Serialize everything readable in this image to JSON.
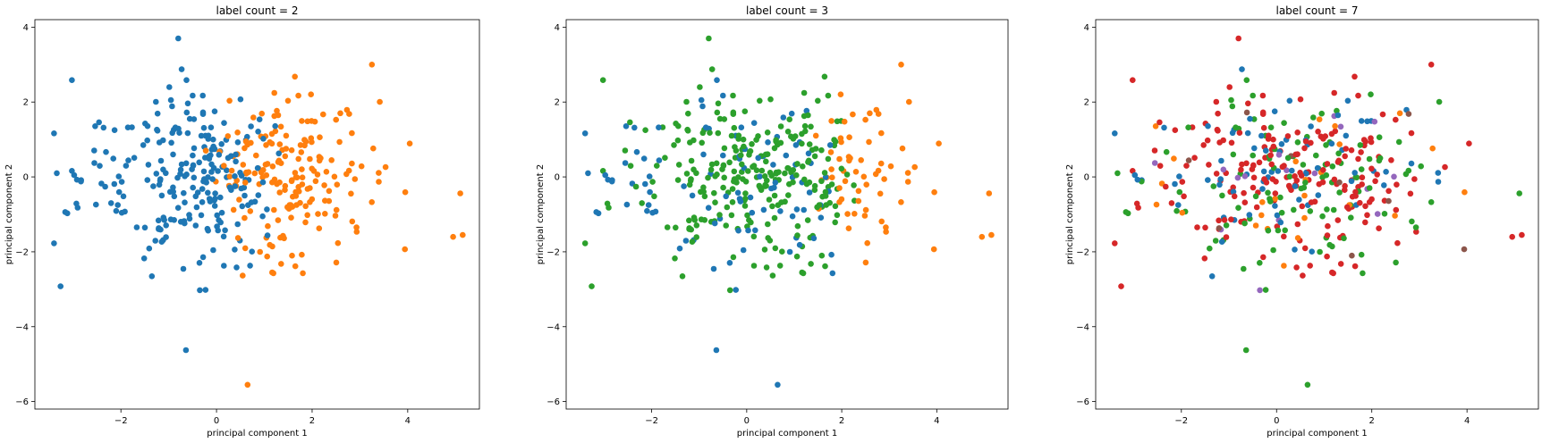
{
  "palette": [
    "#1f77b4",
    "#ff7f0e",
    "#2ca02c",
    "#d62728",
    "#9467bd",
    "#8c564b",
    "#e377c2"
  ],
  "chart_data": [
    {
      "type": "scatter",
      "title": "label count = 2",
      "xlabel": "principal component 1",
      "ylabel": "principal component 2",
      "xlim": [
        -3.8,
        5.5
      ],
      "ylim": [
        -6.2,
        4.2
      ],
      "xticks": [
        -2,
        0,
        2,
        4
      ],
      "yticks": [
        -6,
        -4,
        -2,
        0,
        2,
        4
      ],
      "grid": false,
      "legend": "none",
      "point_count": 420,
      "cluster_colors": [
        "#1f77b4",
        "#ff7f0e"
      ]
    },
    {
      "type": "scatter",
      "title": "label count = 3",
      "xlabel": "principal component 1",
      "ylabel": "principal component 2",
      "xlim": [
        -3.8,
        5.5
      ],
      "ylim": [
        -6.2,
        4.2
      ],
      "xticks": [
        -2,
        0,
        2,
        4
      ],
      "yticks": [
        -6,
        -4,
        -2,
        0,
        2,
        4
      ],
      "grid": false,
      "legend": "none",
      "point_count": 420,
      "cluster_colors": [
        "#1f77b4",
        "#ff7f0e",
        "#2ca02c"
      ]
    },
    {
      "type": "scatter",
      "title": "label count = 7",
      "xlabel": "principal component 1",
      "ylabel": "principal component 2",
      "xlim": [
        -3.8,
        5.5
      ],
      "ylim": [
        -6.2,
        4.2
      ],
      "xticks": [
        -2,
        0,
        2,
        4
      ],
      "yticks": [
        -6,
        -4,
        -2,
        0,
        2,
        4
      ],
      "grid": false,
      "legend": "none",
      "point_count": 420,
      "cluster_colors": [
        "#1f77b4",
        "#ff7f0e",
        "#2ca02c",
        "#d62728",
        "#9467bd",
        "#8c564b",
        "#e377c2"
      ]
    }
  ]
}
